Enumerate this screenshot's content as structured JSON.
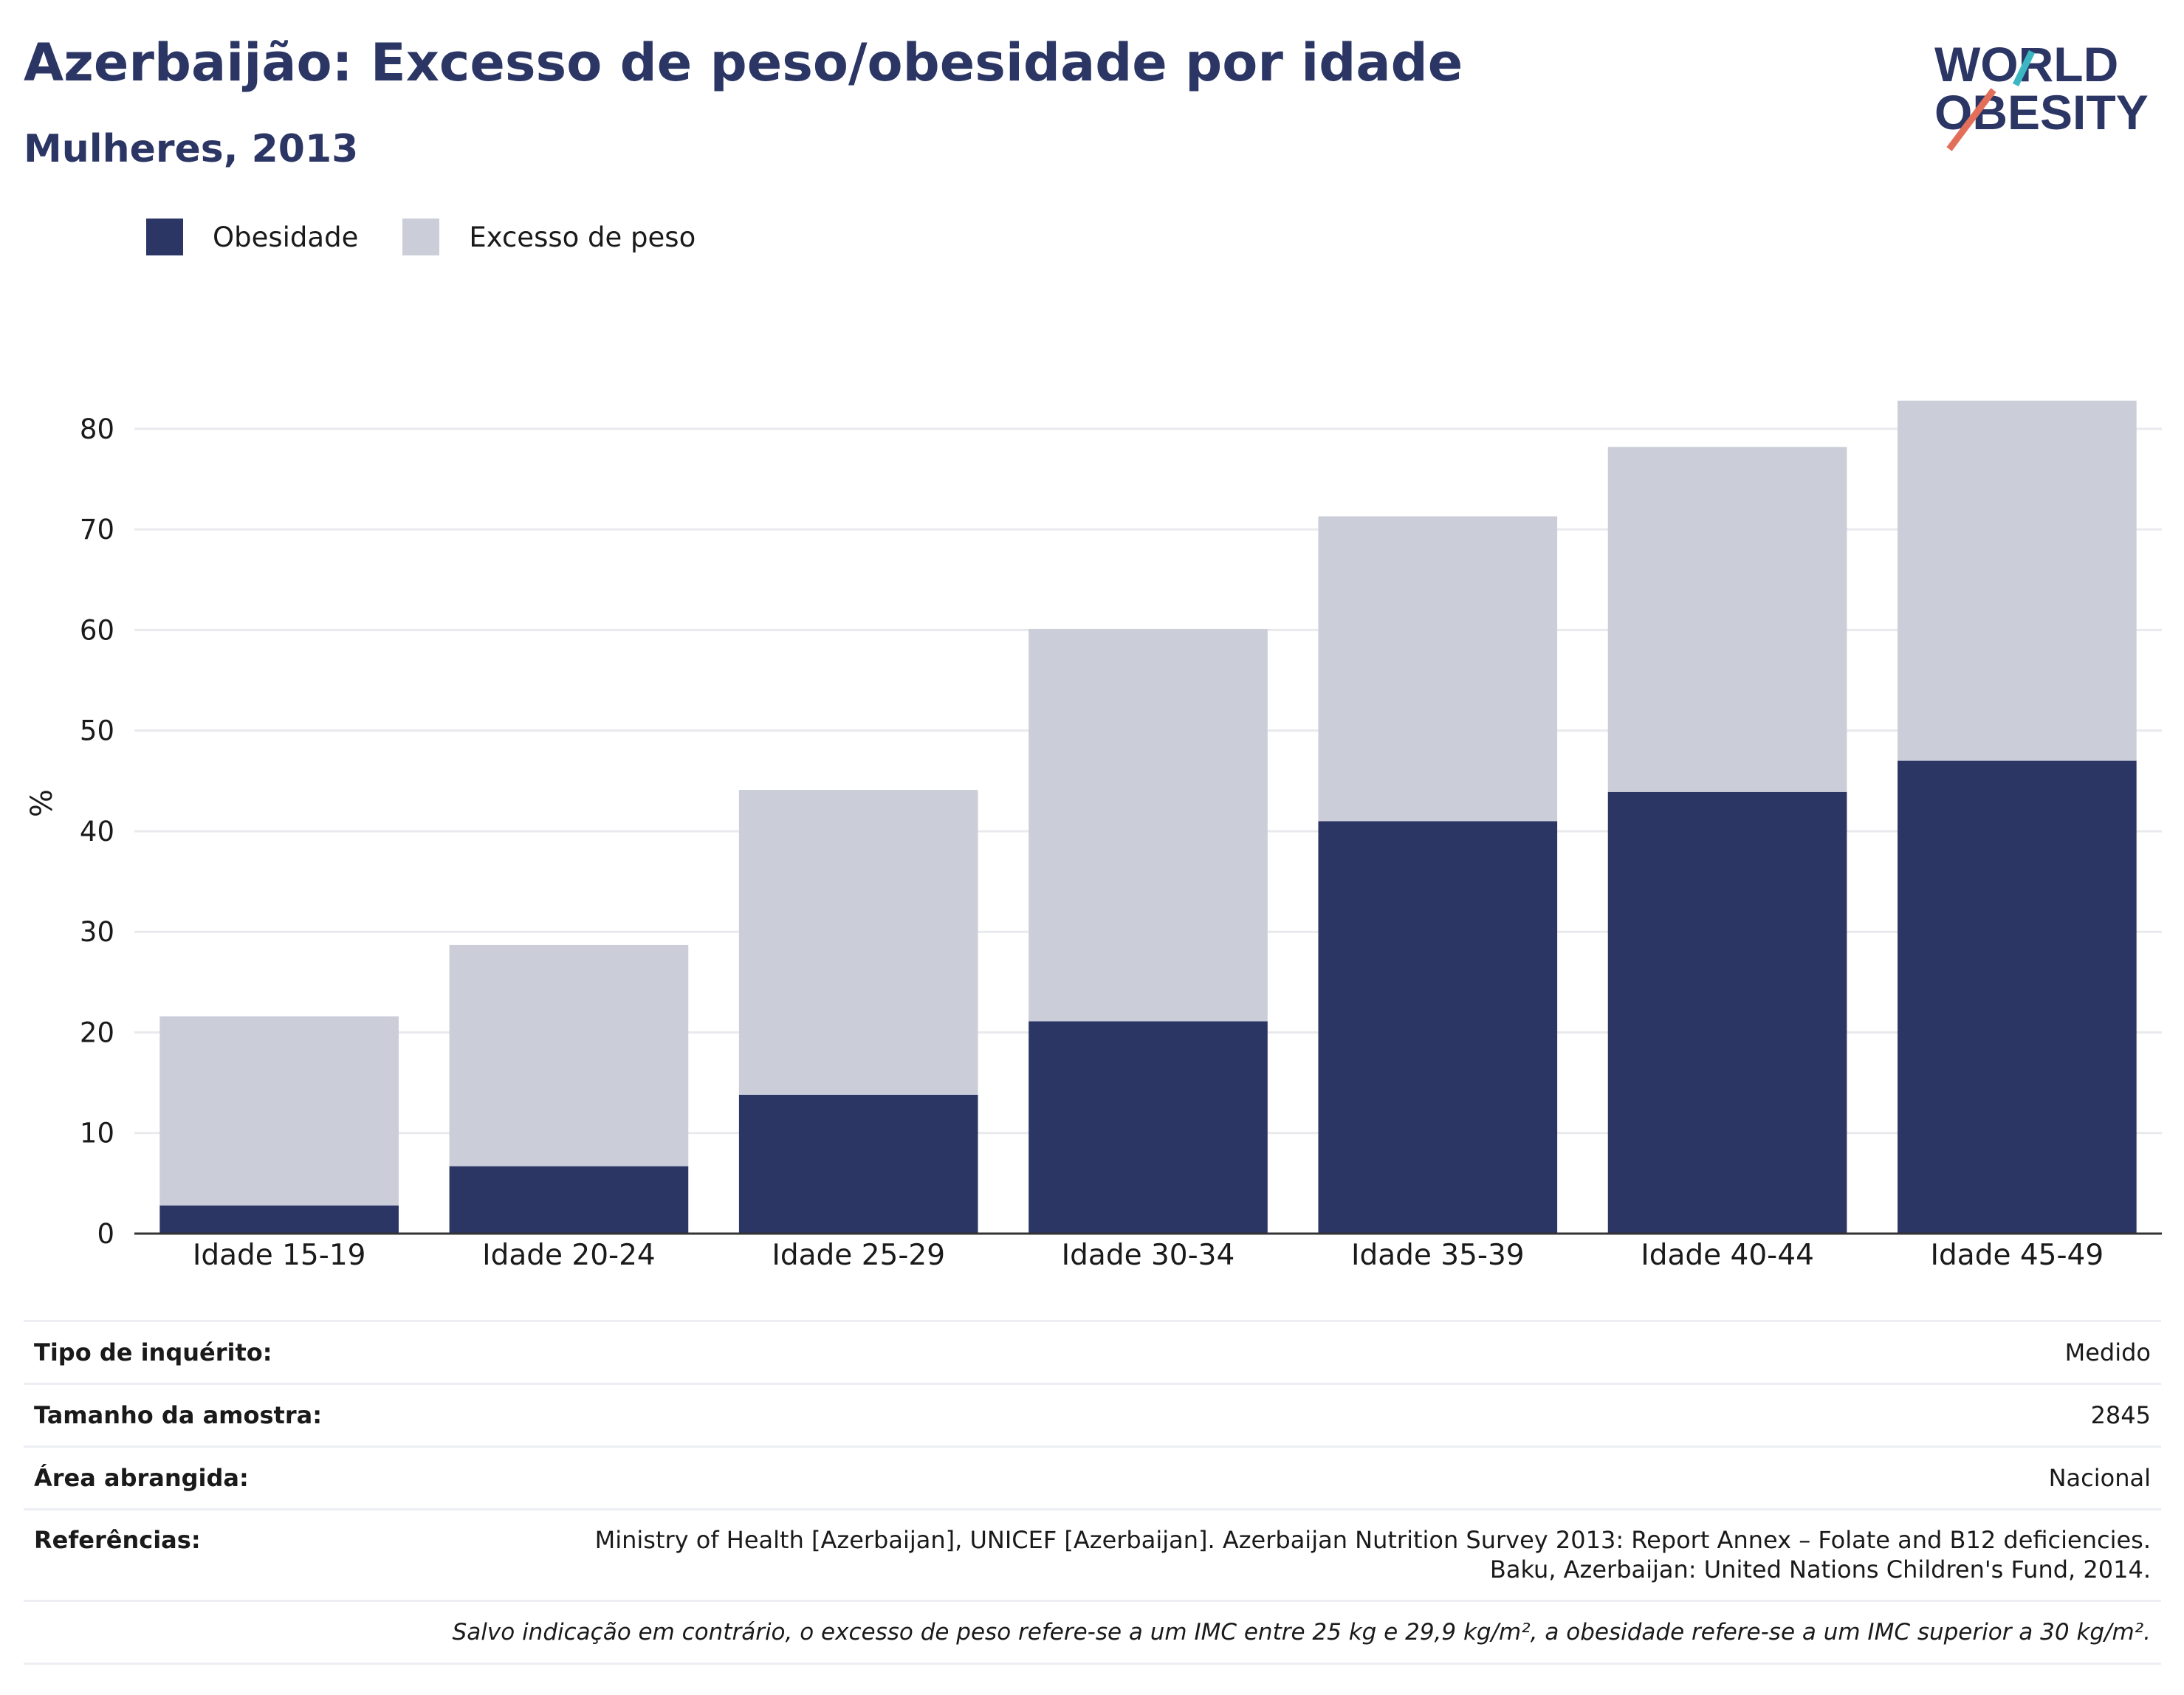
{
  "title": "Azerbaijão: Excesso de peso/obesidade por idade",
  "subtitle": "Mulheres, 2013",
  "logo": {
    "line1": "WORLD",
    "line2": "OBESITY",
    "icon": "world-obesity-logo"
  },
  "colors": {
    "obesity": "#2b3665",
    "overweight": "#cbcdd8",
    "title": "#2b3665",
    "grid": "#e9eaee",
    "axis": "#333333"
  },
  "legend": {
    "obesity_label": "Obesidade",
    "overweight_label": "Excesso de peso"
  },
  "chart_data": {
    "type": "bar",
    "stacked": true,
    "categories": [
      "Idade 15-19",
      "Idade 20-24",
      "Idade 25-29",
      "Idade 30-34",
      "Idade 35-39",
      "Idade 40-44",
      "Idade 45-49"
    ],
    "series": [
      {
        "name": "Obesidade",
        "values": [
          2.8,
          6.7,
          13.8,
          21.1,
          41.0,
          43.9,
          47.0
        ]
      },
      {
        "name": "Excesso de peso",
        "values": [
          18.8,
          22.0,
          30.3,
          39.0,
          30.3,
          34.3,
          35.8
        ]
      }
    ],
    "ylabel": "%",
    "ylim": [
      0,
      83
    ],
    "yticks": [
      0,
      10,
      20,
      30,
      40,
      50,
      60,
      70,
      80
    ],
    "grid": true,
    "legend_position": "top-left"
  },
  "info": {
    "survey_type_label": "Tipo de inquérito:",
    "survey_type_value": "Medido",
    "sample_size_label": "Tamanho da amostra:",
    "sample_size_value": "2845",
    "area_label": "Área abrangida:",
    "area_value": "Nacional",
    "references_label": "Referências:",
    "references_line1": "Ministry of Health [Azerbaijan], UNICEF [Azerbaijan]. Azerbaijan Nutrition Survey 2013: Report Annex – Folate and B12 deficiencies.",
    "references_line2": "Baku, Azerbaijan: United Nations Children's Fund, 2014.",
    "footnote": "Salvo indicação em contrário, o excesso de peso refere-se a um IMC entre 25 kg e 29,9 kg/m², a obesidade refere-se a um IMC superior a 30 kg/m²."
  }
}
